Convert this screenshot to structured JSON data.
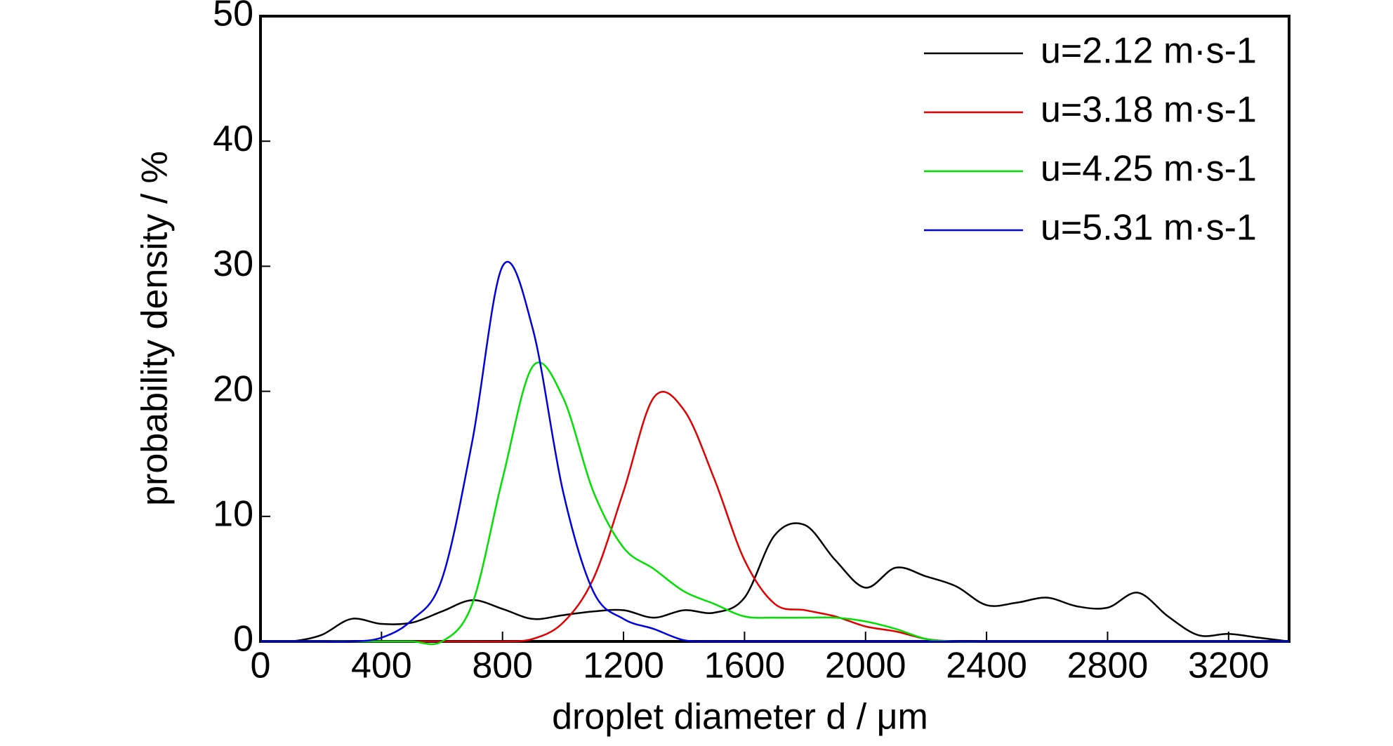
{
  "chart_data": {
    "type": "line",
    "xlabel": "droplet diameter d / μm",
    "ylabel": "probability density / %",
    "x": [
      0,
      100,
      200,
      300,
      400,
      500,
      600,
      700,
      800,
      900,
      1000,
      1100,
      1200,
      1300,
      1400,
      1500,
      1600,
      1700,
      1800,
      1900,
      2000,
      2100,
      2200,
      2300,
      2400,
      2500,
      2600,
      2700,
      2800,
      2900,
      3000,
      3100,
      3200,
      3300,
      3400
    ],
    "series": [
      {
        "name": "u=2.12 m·s-1",
        "color": "#000000",
        "values": [
          0,
          0,
          0.5,
          1.8,
          1.4,
          1.5,
          2.4,
          3.3,
          2.6,
          1.8,
          2.1,
          2.4,
          2.5,
          1.9,
          2.5,
          2.3,
          3.5,
          8.5,
          9.3,
          6.5,
          4.3,
          5.9,
          5.2,
          4.4,
          2.9,
          3.1,
          3.5,
          2.8,
          2.7,
          3.9,
          2.0,
          0.5,
          0.6,
          0.3,
          0
        ]
      },
      {
        "name": "u=3.18 m·s-1",
        "color": "#e00000",
        "values": [
          0,
          0,
          0,
          0,
          0,
          0,
          0,
          0,
          0,
          0.2,
          1.5,
          5,
          12,
          19.5,
          18.5,
          13,
          6.5,
          3,
          2.5,
          2,
          1.2,
          0.8,
          0.2,
          0,
          0,
          0,
          0,
          0,
          0,
          0,
          0,
          0,
          0,
          0,
          0
        ]
      },
      {
        "name": "u=4.25 m·s-1",
        "color": "#00e000",
        "values": [
          0,
          0,
          0,
          0,
          0,
          0,
          0,
          3,
          13,
          22,
          19.5,
          12,
          7.5,
          5.8,
          4,
          3,
          2,
          1.9,
          1.9,
          1.9,
          1.6,
          1,
          0.2,
          0,
          0,
          0,
          0,
          0,
          0,
          0,
          0,
          0,
          0,
          0,
          0
        ]
      },
      {
        "name": "u=5.31 m·s-1",
        "color": "#0000e0",
        "values": [
          0,
          0,
          0,
          0,
          0.3,
          1.7,
          5,
          16,
          30,
          25,
          12,
          4,
          1.8,
          1,
          0.1,
          0,
          0,
          0,
          0,
          0,
          0,
          0,
          0,
          0,
          0,
          0,
          0,
          0,
          0,
          0,
          0,
          0,
          0,
          0,
          0
        ]
      }
    ],
    "xlim": [
      0,
      3400
    ],
    "xticks": [
      0,
      400,
      800,
      1200,
      1600,
      2000,
      2400,
      2800,
      3200
    ],
    "ylim": [
      0,
      50
    ],
    "yticks": [
      0,
      10,
      20,
      30,
      40,
      50
    ],
    "legend": "upper right"
  }
}
